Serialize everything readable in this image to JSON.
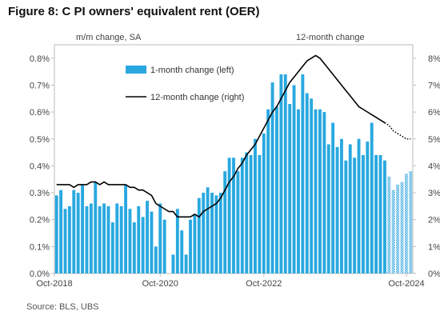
{
  "title": "Figure 8: C PI owners' equivalent rent (OER)",
  "source": "Source: BLS, UBS",
  "chart_data": {
    "type": "bar",
    "left_axis_title": "m/m change, SA",
    "right_axis_title": "12-month change",
    "x_ticks": [
      "Oct-2018",
      "Oct-2020",
      "Oct-2022",
      "Oct-2024"
    ],
    "y_left_ticks": [
      "0.0%",
      "0.1%",
      "0.2%",
      "0.3%",
      "0.4%",
      "0.5%",
      "0.6%",
      "0.7%",
      "0.8%"
    ],
    "y_right_ticks": [
      "0%",
      "1%",
      "2%",
      "3%",
      "4%",
      "5%",
      "6%",
      "7%",
      "8%"
    ],
    "ylim_left": [
      0,
      0.85
    ],
    "ylim_right": [
      0,
      8.5
    ],
    "grid": false,
    "legend": "top-left",
    "colors": {
      "bar": "#29a8e0",
      "line": "#000000"
    },
    "series": [
      {
        "name": "1-month change (left)",
        "type": "bar",
        "axis": "left",
        "values": [
          0.29,
          0.31,
          0.24,
          0.25,
          0.31,
          0.3,
          0.33,
          0.25,
          0.26,
          0.34,
          0.25,
          0.26,
          0.25,
          0.19,
          0.26,
          0.25,
          0.33,
          0.24,
          0.19,
          0.25,
          0.21,
          0.27,
          0.23,
          0.1,
          0.26,
          0.2,
          0.0,
          0.07,
          0.24,
          0.16,
          0.07,
          0.2,
          0.22,
          0.28,
          0.3,
          0.32,
          0.3,
          0.29,
          0.3,
          0.38,
          0.43,
          0.43,
          0.38,
          0.43,
          0.45,
          0.44,
          0.5,
          0.44,
          0.52,
          0.61,
          0.71,
          0.62,
          0.74,
          0.74,
          0.63,
          0.7,
          0.61,
          0.74,
          0.67,
          0.65,
          0.61,
          0.61,
          0.6,
          0.48,
          0.56,
          0.47,
          0.5,
          0.42,
          0.48,
          0.43,
          0.5,
          0.44,
          0.49,
          0.56,
          0.44,
          0.44,
          0.42,
          0.36,
          0.31,
          0.33,
          0.34,
          0.37,
          0.38
        ],
        "projected_from_index": 77
      },
      {
        "name": "12-month change (right)",
        "type": "line",
        "axis": "right",
        "values": [
          3.3,
          3.3,
          3.3,
          3.3,
          3.2,
          3.3,
          3.3,
          3.3,
          3.4,
          3.4,
          3.3,
          3.4,
          3.3,
          3.3,
          3.3,
          3.3,
          3.3,
          3.2,
          3.2,
          3.1,
          3.1,
          3.0,
          2.9,
          2.6,
          2.5,
          2.4,
          2.3,
          2.3,
          2.1,
          2.1,
          2.1,
          2.1,
          2.2,
          2.1,
          2.3,
          2.4,
          2.5,
          2.6,
          2.8,
          3.1,
          3.4,
          3.6,
          3.9,
          4.1,
          4.4,
          4.6,
          4.8,
          5.1,
          5.4,
          5.7,
          6.0,
          6.2,
          6.5,
          6.8,
          7.1,
          7.3,
          7.5,
          7.7,
          7.9,
          8.0,
          8.1,
          8.0,
          7.8,
          7.6,
          7.4,
          7.2,
          7.0,
          6.8,
          6.6,
          6.4,
          6.2,
          6.1,
          6.0,
          5.9,
          5.8,
          5.7,
          5.6,
          5.5,
          5.3,
          5.2,
          5.1,
          5.0,
          5.0
        ],
        "projected_from_index": 76
      }
    ]
  }
}
